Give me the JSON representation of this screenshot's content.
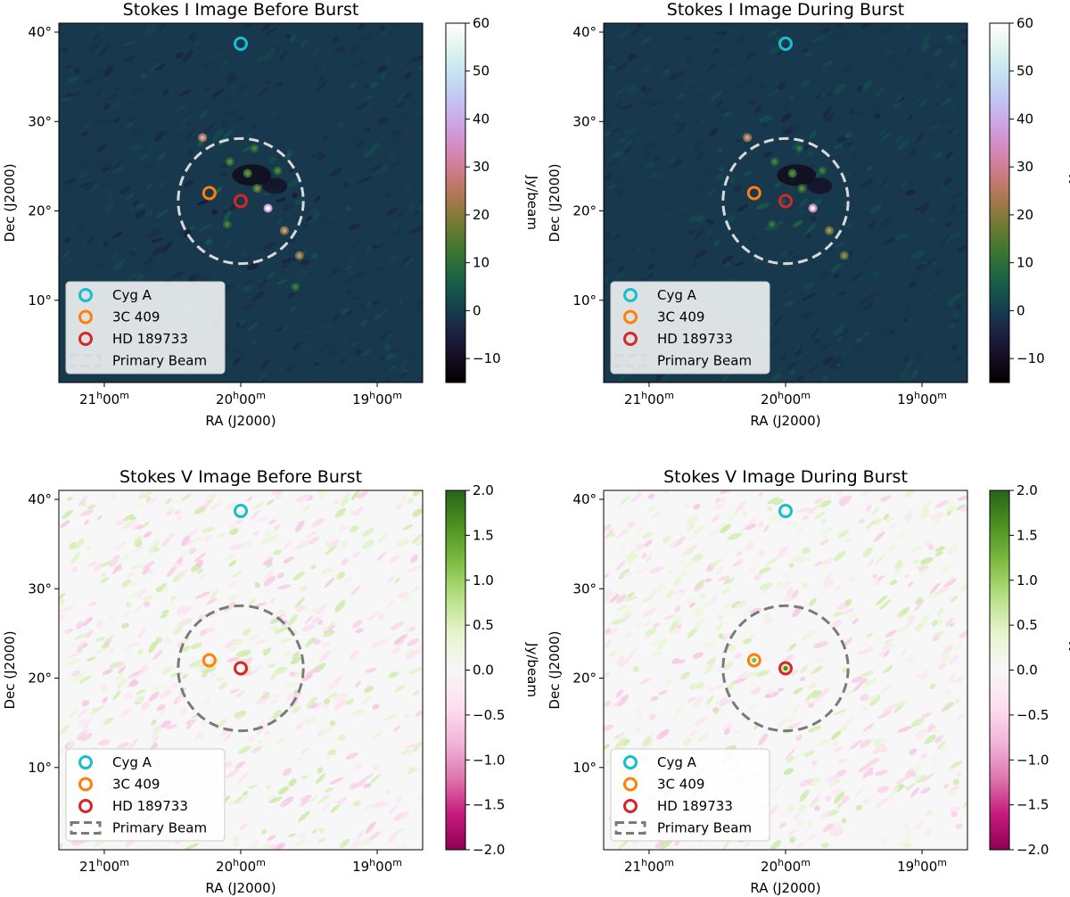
{
  "chart_data": [
    {
      "type": "heatmap",
      "title": "Stokes I Image Before Burst",
      "stokes": "I",
      "colormap": "cubehelix",
      "xlabel": "RA (J2000)",
      "ylabel": "Dec (J2000)",
      "xticks": [
        {
          "h": "21",
          "m": "00"
        },
        {
          "h": "20",
          "m": "00"
        },
        {
          "h": "19",
          "m": "00"
        }
      ],
      "yticks": [
        "10°",
        "20°",
        "30°",
        "40°"
      ],
      "colorbar": {
        "label": "Jy/beam",
        "range": [
          -15,
          60
        ],
        "ticks": [
          "60",
          "50",
          "40",
          "30",
          "20",
          "10",
          "0",
          "−10"
        ]
      },
      "markers": [
        {
          "name": "Cyg A",
          "ra_h": 20.0,
          "dec": 38.7,
          "color": "#17becf"
        },
        {
          "name": "3C 409",
          "ra_h": 20.23,
          "dec": 22.0,
          "color": "#ff7f0e"
        },
        {
          "name": "HD 189733",
          "ra_h": 20.0,
          "dec": 21.1,
          "color": "#d62728"
        }
      ],
      "primary_beam": {
        "center_ra_h": 20.0,
        "center_dec": 21.1,
        "radius_deg": 7.0,
        "color": "#d9d9d9"
      },
      "legend": [
        "Cyg A",
        "3C 409",
        "HD 189733",
        "Primary Beam"
      ],
      "sources": [
        {
          "ra_h": 19.8,
          "dec": 20.3,
          "flux": 60
        },
        {
          "ra_h": 20.28,
          "dec": 28.2,
          "flux": 38
        },
        {
          "ra_h": 19.57,
          "dec": 15.0,
          "flux": 30
        },
        {
          "ra_h": 19.68,
          "dec": 17.8,
          "flux": 33
        },
        {
          "ra_h": 19.88,
          "dec": 22.5,
          "flux": 22
        },
        {
          "ra_h": 19.95,
          "dec": 24.2,
          "flux": 20
        },
        {
          "ra_h": 20.08,
          "dec": 25.5,
          "flux": 18
        },
        {
          "ra_h": 19.73,
          "dec": 24.5,
          "flux": 17
        },
        {
          "ra_h": 20.1,
          "dec": 18.5,
          "flux": 16
        },
        {
          "ra_h": 19.6,
          "dec": 11.5,
          "flux": 14
        },
        {
          "ra_h": 19.9,
          "dec": 27.0,
          "flux": 15
        }
      ]
    },
    {
      "type": "heatmap",
      "title": "Stokes I Image During Burst",
      "stokes": "I",
      "colormap": "cubehelix",
      "xlabel": "RA (J2000)",
      "ylabel": "Dec (J2000)",
      "xticks": [
        {
          "h": "21",
          "m": "00"
        },
        {
          "h": "20",
          "m": "00"
        },
        {
          "h": "19",
          "m": "00"
        }
      ],
      "yticks": [
        "10°",
        "20°",
        "30°",
        "40°"
      ],
      "colorbar": {
        "label": "Jy/beam",
        "range": [
          -15,
          60
        ],
        "ticks": [
          "60",
          "50",
          "40",
          "30",
          "20",
          "10",
          "0",
          "−10"
        ]
      },
      "markers": [
        {
          "name": "Cyg A",
          "ra_h": 20.0,
          "dec": 38.7,
          "color": "#17becf"
        },
        {
          "name": "3C 409",
          "ra_h": 20.23,
          "dec": 22.0,
          "color": "#ff7f0e"
        },
        {
          "name": "HD 189733",
          "ra_h": 20.0,
          "dec": 21.1,
          "color": "#d62728"
        }
      ],
      "primary_beam": {
        "center_ra_h": 20.0,
        "center_dec": 21.1,
        "radius_deg": 7.0,
        "color": "#d9d9d9"
      },
      "legend": [
        "Cyg A",
        "3C 409",
        "HD 189733",
        "Primary Beam"
      ],
      "sources": [
        {
          "ra_h": 19.8,
          "dec": 20.3,
          "flux": 55
        },
        {
          "ra_h": 20.28,
          "dec": 28.2,
          "flux": 34
        },
        {
          "ra_h": 19.57,
          "dec": 15.0,
          "flux": 24
        },
        {
          "ra_h": 19.68,
          "dec": 17.8,
          "flux": 28
        },
        {
          "ra_h": 19.88,
          "dec": 22.5,
          "flux": 18
        },
        {
          "ra_h": 19.95,
          "dec": 24.2,
          "flux": 18
        },
        {
          "ra_h": 20.08,
          "dec": 25.5,
          "flux": 15
        },
        {
          "ra_h": 19.73,
          "dec": 24.5,
          "flux": 14
        },
        {
          "ra_h": 20.1,
          "dec": 18.5,
          "flux": 13
        },
        {
          "ra_h": 19.9,
          "dec": 27.0,
          "flux": 12
        }
      ]
    },
    {
      "type": "heatmap",
      "title": "Stokes V Image Before Burst",
      "stokes": "V",
      "colormap": "PiYG",
      "xlabel": "RA (J2000)",
      "ylabel": "Dec (J2000)",
      "xticks": [
        {
          "h": "21",
          "m": "00"
        },
        {
          "h": "20",
          "m": "00"
        },
        {
          "h": "19",
          "m": "00"
        }
      ],
      "yticks": [
        "10°",
        "20°",
        "30°",
        "40°"
      ],
      "colorbar": {
        "label": "Jy/beam",
        "range": [
          -2.0,
          2.0
        ],
        "ticks": [
          "2.0",
          "1.5",
          "1.0",
          "0.5",
          "0.0",
          "−0.5",
          "−1.0",
          "−1.5",
          "−2.0"
        ]
      },
      "markers": [
        {
          "name": "Cyg A",
          "ra_h": 20.0,
          "dec": 38.7,
          "color": "#17becf"
        },
        {
          "name": "3C 409",
          "ra_h": 20.23,
          "dec": 22.0,
          "color": "#ff7f0e"
        },
        {
          "name": "HD 189733",
          "ra_h": 20.0,
          "dec": 21.1,
          "color": "#d62728"
        }
      ],
      "primary_beam": {
        "center_ra_h": 20.0,
        "center_dec": 21.1,
        "radius_deg": 7.0,
        "color": "#7a7a7a"
      },
      "legend": [
        "Cyg A",
        "3C 409",
        "HD 189733",
        "Primary Beam"
      ],
      "sources": []
    },
    {
      "type": "heatmap",
      "title": "Stokes V Image During Burst",
      "stokes": "V",
      "colormap": "PiYG",
      "xlabel": "RA (J2000)",
      "ylabel": "Dec (J2000)",
      "xticks": [
        {
          "h": "21",
          "m": "00"
        },
        {
          "h": "20",
          "m": "00"
        },
        {
          "h": "19",
          "m": "00"
        }
      ],
      "yticks": [
        "10°",
        "20°",
        "30°",
        "40°"
      ],
      "colorbar": {
        "label": "Jy/beam",
        "range": [
          -2.0,
          2.0
        ],
        "ticks": [
          "2.0",
          "1.5",
          "1.0",
          "0.5",
          "0.0",
          "−0.5",
          "−1.0",
          "−1.5",
          "−2.0"
        ]
      },
      "markers": [
        {
          "name": "Cyg A",
          "ra_h": 20.0,
          "dec": 38.7,
          "color": "#17becf"
        },
        {
          "name": "3C 409",
          "ra_h": 20.23,
          "dec": 22.0,
          "color": "#ff7f0e"
        },
        {
          "name": "HD 189733",
          "ra_h": 20.0,
          "dec": 21.1,
          "color": "#d62728"
        }
      ],
      "primary_beam": {
        "center_ra_h": 20.0,
        "center_dec": 21.1,
        "radius_deg": 7.0,
        "color": "#7a7a7a"
      },
      "legend": [
        "Cyg A",
        "3C 409",
        "HD 189733",
        "Primary Beam"
      ],
      "sources": [
        {
          "ra_h": 20.23,
          "dec": 22.0,
          "flux": 1.2
        },
        {
          "ra_h": 20.0,
          "dec": 21.1,
          "flux": 1.6
        }
      ]
    }
  ]
}
